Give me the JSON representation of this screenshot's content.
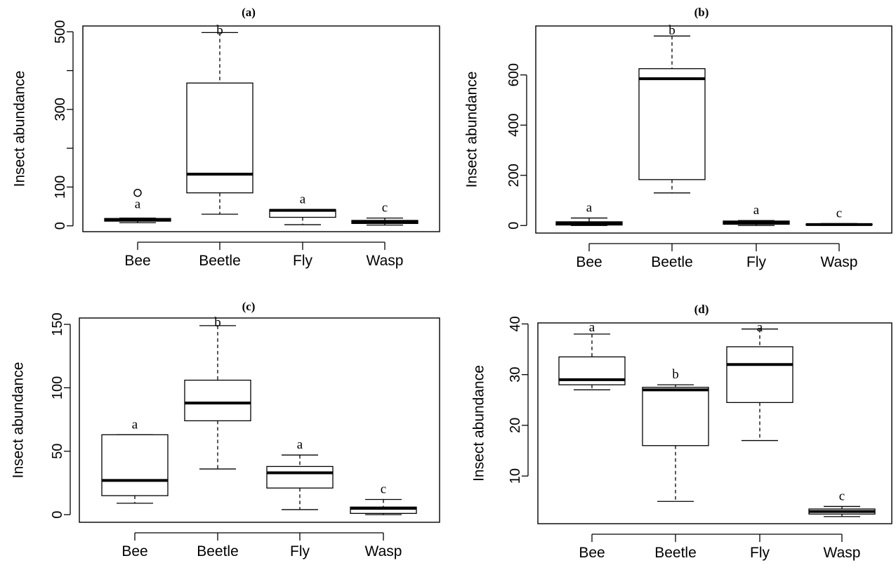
{
  "chart_data": [
    {
      "type": "box",
      "panel": "(a)",
      "ylabel": "Insect abundance",
      "categories": [
        "Bee",
        "Beetle",
        "Fly",
        "Wasp"
      ],
      "yticks": [
        0,
        100,
        300,
        500
      ],
      "ylim": [
        -15,
        515
      ],
      "boxes": [
        {
          "category": "Bee",
          "min": 8,
          "q1": 12,
          "median": 16,
          "q3": 19,
          "max": 20,
          "outliers": [
            85
          ],
          "letter": "a"
        },
        {
          "category": "Beetle",
          "min": 30,
          "q1": 85,
          "median": 133,
          "q3": 368,
          "max": 498,
          "outliers": [],
          "letter": "b"
        },
        {
          "category": "Fly",
          "min": 3,
          "q1": 22,
          "median": 40,
          "q3": 42,
          "max": 42,
          "outliers": [],
          "letter": "a"
        },
        {
          "category": "Wasp",
          "min": 2,
          "q1": 6,
          "median": 10,
          "q3": 14,
          "max": 20,
          "outliers": [],
          "letter": "c"
        }
      ]
    },
    {
      "type": "box",
      "panel": "(b)",
      "ylabel": "Insect abundance",
      "categories": [
        "Bee",
        "Beetle",
        "Fly",
        "Wasp"
      ],
      "yticks": [
        0,
        200,
        400,
        600
      ],
      "ylim": [
        -30,
        795
      ],
      "boxes": [
        {
          "category": "Bee",
          "min": 0,
          "q1": 2,
          "median": 8,
          "q3": 15,
          "max": 30,
          "outliers": [],
          "letter": "a"
        },
        {
          "category": "Beetle",
          "min": 130,
          "q1": 183,
          "median": 585,
          "q3": 625,
          "max": 755,
          "outliers": [],
          "letter": "b"
        },
        {
          "category": "Fly",
          "min": 0,
          "q1": 5,
          "median": 12,
          "q3": 18,
          "max": 20,
          "outliers": [],
          "letter": "a"
        },
        {
          "category": "Wasp",
          "min": 1,
          "q1": 2,
          "median": 4,
          "q3": 6,
          "max": 8,
          "outliers": [],
          "letter": "c"
        }
      ]
    },
    {
      "type": "box",
      "panel": "(c)",
      "ylabel": "Insect abundance",
      "categories": [
        "Bee",
        "Beetle",
        "Fly",
        "Wasp"
      ],
      "yticks": [
        0,
        50,
        100,
        150
      ],
      "ylim": [
        -6,
        155
      ],
      "boxes": [
        {
          "category": "Bee",
          "min": 9,
          "q1": 15,
          "median": 27,
          "q3": 63,
          "max": 63,
          "outliers": [],
          "letter": "a"
        },
        {
          "category": "Beetle",
          "min": 36,
          "q1": 74,
          "median": 88,
          "q3": 106,
          "max": 149,
          "outliers": [],
          "letter": "b"
        },
        {
          "category": "Fly",
          "min": 4,
          "q1": 21,
          "median": 33,
          "q3": 38,
          "max": 47,
          "outliers": [],
          "letter": "a"
        },
        {
          "category": "Wasp",
          "min": 0,
          "q1": 1,
          "median": 5,
          "q3": 6,
          "max": 12,
          "outliers": [],
          "letter": "c"
        }
      ]
    },
    {
      "type": "box",
      "panel": "(d)",
      "ylabel": "Insect abundance",
      "categories": [
        "Bee",
        "Beetle",
        "Fly",
        "Wasp"
      ],
      "yticks": [
        10,
        20,
        30,
        40
      ],
      "ylim": [
        0.6,
        40.2
      ],
      "boxes": [
        {
          "category": "Bee",
          "min": 27,
          "q1": 28,
          "median": 29,
          "q3": 33.5,
          "max": 38,
          "outliers": [],
          "letter": "a"
        },
        {
          "category": "Beetle",
          "min": 5,
          "q1": 16,
          "median": 27,
          "q3": 27.5,
          "max": 28,
          "outliers": [],
          "letter": "b"
        },
        {
          "category": "Fly",
          "min": 17,
          "q1": 24.5,
          "median": 32,
          "q3": 35.5,
          "max": 39,
          "outliers": [],
          "letter": "a"
        },
        {
          "category": "Wasp",
          "min": 2,
          "q1": 2.5,
          "median": 3,
          "q3": 3.5,
          "max": 4,
          "outliers": [],
          "letter": "c"
        }
      ]
    }
  ]
}
